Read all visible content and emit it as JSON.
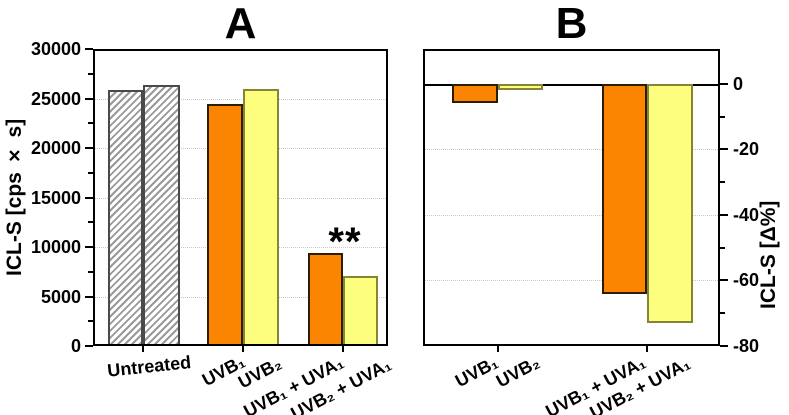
{
  "figure": {
    "panel_a_title": "A",
    "panel_b_title": "B",
    "panel_a_ylabel": "ICL-S [cps × s]",
    "panel_b_ylabel": "ICL-S [Δ%]"
  },
  "colors": {
    "orange_fill": "#FB8500",
    "orange_border": "#2b1d00",
    "yellow_fill": "#FDFD7E",
    "yellow_border": "#858535",
    "hatch_stripe": "#999999",
    "hatch_border": "#4a4a4a",
    "grid": "#c9c9c9",
    "axis": "#000000"
  },
  "chart_data": [
    {
      "type": "bar",
      "panel": "A",
      "title": "A",
      "ylabel": "ICL-S [cps × s]",
      "ylabel_side": "left",
      "ylim": [
        0,
        30000
      ],
      "yticks": [
        {
          "value": 0,
          "label": "0"
        },
        {
          "value": 5000,
          "label": "5000"
        },
        {
          "value": 10000,
          "label": "10000"
        },
        {
          "value": 15000,
          "label": "15000"
        },
        {
          "value": 20000,
          "label": "20000"
        },
        {
          "value": 25000,
          "label": "25000"
        },
        {
          "value": 30000,
          "label": "30000"
        }
      ],
      "ytick_minor_values": [
        2500,
        7500,
        12500,
        17500,
        22500,
        27500
      ],
      "grid_values": [
        5000,
        10000,
        15000,
        20000,
        25000
      ],
      "grid_style": "dotted",
      "categories": [
        "Untreated",
        "UVB₁",
        "UVB₂",
        "UVB₁ + UVA₁",
        "UVB₂ + UVA₁"
      ],
      "bars": [
        {
          "group": "Untreated",
          "style": "hatched",
          "value": 25900
        },
        {
          "group": "Untreated",
          "style": "hatched",
          "value": 26400
        },
        {
          "group": "UVB₁",
          "style": "orange",
          "value": 24400
        },
        {
          "group": "UVB₂",
          "style": "yellow",
          "value": 26000
        },
        {
          "group": "UVB₁ + UVA₁",
          "style": "orange",
          "value": 9400
        },
        {
          "group": "UVB₂ + UVA₁",
          "style": "yellow",
          "value": 7100
        }
      ],
      "annotations": [
        {
          "text": "**",
          "meaning": "statistical significance",
          "over": "UVB₁ + UVA₁ / UVB₂ + UVA₁"
        }
      ]
    },
    {
      "type": "bar",
      "panel": "B",
      "title": "B",
      "ylabel": "ICL-S [Δ%]",
      "ylabel_side": "right",
      "ylim": [
        -80,
        10
      ],
      "yticks": [
        {
          "value": 0,
          "label": "0"
        },
        {
          "value": -20,
          "label": "-20"
        },
        {
          "value": -40,
          "label": "-40"
        },
        {
          "value": -60,
          "label": "-60"
        },
        {
          "value": -80,
          "label": "-80"
        }
      ],
      "ytick_minor_values": [
        -10,
        -30,
        -50,
        -70
      ],
      "grid_values": [
        -20,
        -40,
        -60
      ],
      "grid_style": "dotted",
      "zero_line": true,
      "categories": [
        "UVB₁",
        "UVB₂",
        "UVB₁ + UVA₁",
        "UVB₂ + UVA₁"
      ],
      "bars": [
        {
          "group": "UVB₁",
          "style": "orange",
          "value": -6
        },
        {
          "group": "UVB₂",
          "style": "yellow",
          "value": -2
        },
        {
          "group": "UVB₁ + UVA₁",
          "style": "orange",
          "value": -64
        },
        {
          "group": "UVB₂ + UVA₁",
          "style": "yellow",
          "value": -73
        }
      ],
      "annotations": []
    }
  ]
}
